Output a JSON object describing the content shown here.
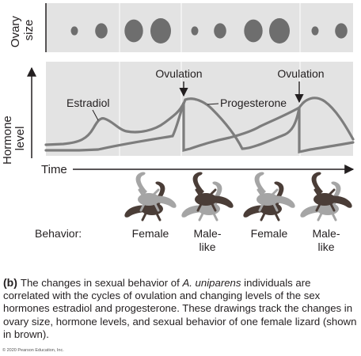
{
  "panel": {
    "ovary_axis_label": [
      "Ovary",
      "size"
    ],
    "hormone_axis_label": [
      "Hormone",
      "level"
    ],
    "time_label": "Time",
    "behavior_label": "Behavior:"
  },
  "ovulation_labels": [
    "Ovulation",
    "Ovulation"
  ],
  "curve_labels": {
    "estradiol": "Estradiol",
    "progesterone": "Progesterone"
  },
  "ovary_sizes": [
    0.35,
    0.6,
    0.9,
    1.0,
    0.35,
    0.6,
    0.9,
    1.0,
    0.35,
    0.6
  ],
  "behaviors": [
    {
      "lines": [
        "Female"
      ],
      "lizard": "brown-bottom"
    },
    {
      "lines": [
        "Male-",
        "like"
      ],
      "lizard": "brown-top"
    },
    {
      "lines": [
        "Female"
      ],
      "lizard": "brown-bottom"
    },
    {
      "lines": [
        "Male-",
        "like"
      ],
      "lizard": "brown-top"
    }
  ],
  "caption": {
    "tag": "(b)",
    "before_italic": "The changes in sexual behavior of ",
    "italic": "A. uniparens",
    "after_italic": " individuals are correlated with the cycles of ovulation and changing levels of the sex hormones estradiol and progesterone. These drawings track the changes in ovary size, hormone levels, and sexual behavior of one female lizard (shown in brown)."
  },
  "copyright": "© 2020 Pearson Education, Inc.",
  "colors": {
    "panel_bg": "#e3e3e3",
    "curve": "#7d7d7d",
    "follicle": "#6e6e6e",
    "lizard_brown": "#4a3d37",
    "lizard_gray": "#a5a5a5"
  }
}
